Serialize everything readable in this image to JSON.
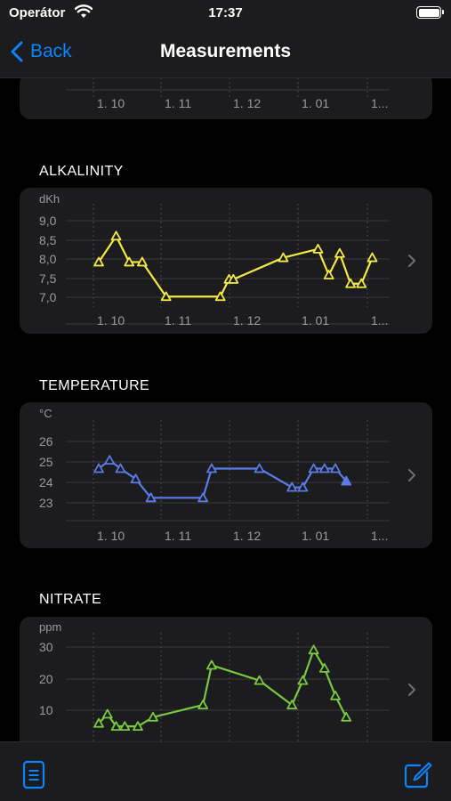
{
  "status": {
    "carrier": "Operátor",
    "time": "17:37",
    "wifi_icon": "wifi-icon",
    "battery_icon": "battery-icon",
    "battery_level": 1.0
  },
  "nav": {
    "back_label": "Back",
    "title": "Measurements"
  },
  "colors": {
    "accent": "#0a84ff",
    "alkalinity": "#f2ea47",
    "temperature": "#5b7be8",
    "nitrate": "#79c940",
    "card_bg": "#1c1c1e"
  },
  "toolbar": {
    "left_icon": "document-icon",
    "right_icon": "compose-icon"
  },
  "chart_data": [
    {
      "type": "line",
      "title": "",
      "ylabel": "",
      "x_ticks": [
        "1. 10",
        "1. 11",
        "1. 12",
        "1. 01",
        "1..."
      ],
      "y_ticks": [],
      "x": [],
      "values": []
    },
    {
      "type": "line",
      "title": "ALKALINITY",
      "ylabel": "dKh",
      "ylim": [
        6.9,
        9.0
      ],
      "y_ticks": [
        "9,0",
        "8,5",
        "8,0",
        "7,5",
        "7,0"
      ],
      "x_ticks": [
        "1. 10",
        "1. 11",
        "1. 12",
        "1. 01",
        "1..."
      ],
      "x": [
        16,
        24,
        30,
        36,
        47,
        72,
        76,
        78,
        101,
        117,
        122,
        127,
        132,
        137,
        142
      ],
      "values": [
        7.9,
        8.5,
        7.9,
        7.9,
        7.1,
        7.1,
        7.5,
        7.5,
        8.0,
        8.2,
        7.6,
        8.1,
        7.4,
        7.4,
        8.0
      ],
      "grid": true,
      "color": "#f2ea47"
    },
    {
      "type": "line",
      "title": "TEMPERATURE",
      "ylabel": "°C",
      "ylim": [
        22.8,
        26.0
      ],
      "y_ticks": [
        "26",
        "25",
        "24",
        "23"
      ],
      "x_ticks": [
        "1. 10",
        "1. 11",
        "1. 12",
        "1. 01",
        "1..."
      ],
      "x": [
        16,
        21,
        26,
        33,
        40,
        64,
        68,
        90,
        105,
        110,
        115,
        120,
        125,
        130
      ],
      "values": [
        24.4,
        24.8,
        24.4,
        23.9,
        23.0,
        23.0,
        24.4,
        24.4,
        23.5,
        23.5,
        24.4,
        24.4,
        24.4,
        23.8
      ],
      "grid": true,
      "color": "#5b7be8"
    },
    {
      "type": "line",
      "title": "NITRATE",
      "ylabel": "ppm",
      "ylim": [
        0,
        30
      ],
      "y_ticks": [
        "30",
        "20",
        "10"
      ],
      "x_ticks": [],
      "x": [
        16,
        20,
        24,
        28,
        34,
        41,
        64,
        68,
        90,
        105,
        110,
        115,
        120,
        125,
        130
      ],
      "values": [
        3,
        6,
        2,
        2,
        2,
        5,
        9,
        22,
        17,
        9,
        17,
        27,
        21,
        12,
        5
      ],
      "grid": true,
      "color": "#79c940"
    }
  ]
}
